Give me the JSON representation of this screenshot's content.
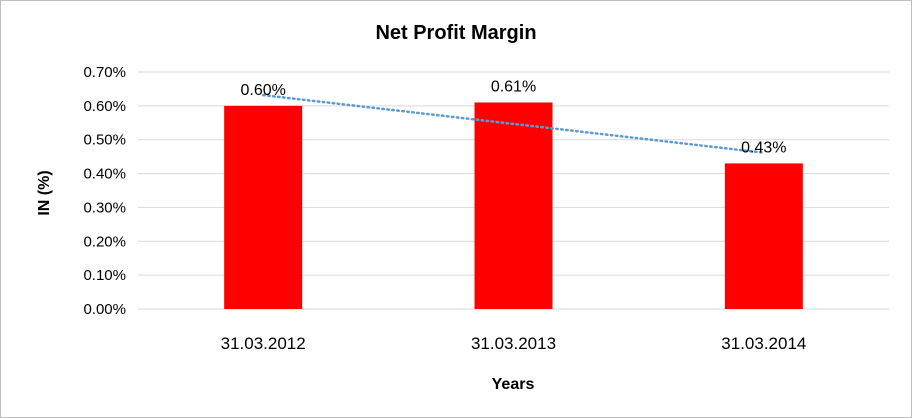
{
  "chart_data": {
    "type": "bar",
    "title": "Net Profit Margin",
    "xlabel": "Years",
    "ylabel": "IN (%)",
    "categories": [
      "31.03.2012",
      "31.03.2013",
      "31.03.2014"
    ],
    "values": [
      0.6,
      0.61,
      0.43
    ],
    "value_labels": [
      "0.60%",
      "0.61%",
      "0.43%"
    ],
    "ylim": [
      0,
      0.7
    ],
    "yticks": [
      0.0,
      0.1,
      0.2,
      0.3,
      0.4,
      0.5,
      0.6,
      0.7
    ],
    "ytick_labels": [
      "0.00%",
      "0.10%",
      "0.20%",
      "0.30%",
      "0.40%",
      "0.50%",
      "0.60%",
      "0.70%"
    ],
    "grid": true,
    "legend": "none",
    "trendline": {
      "type": "linear",
      "style": "dotted",
      "color": "#5b9bd5"
    },
    "bar_color": "#ff0000",
    "gridline_color": "#d9d9d9"
  }
}
